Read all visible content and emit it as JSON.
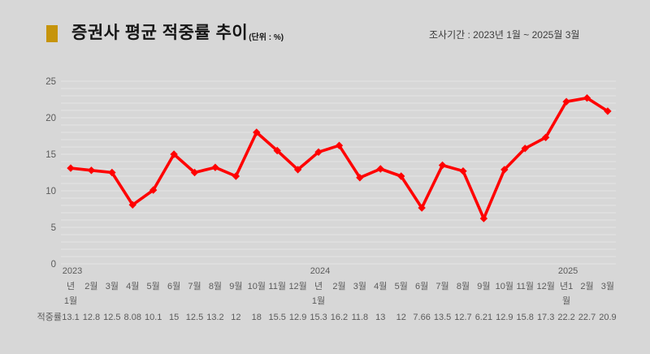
{
  "header": {
    "title": "증권사 평균 적중률 추이",
    "unit": "(단위 : %)",
    "period": "조사기간 : 2023년 1월 ~ 2025월 3월",
    "bullet_color": "#C6940B"
  },
  "chart_data": {
    "type": "line",
    "title": "증권사 평균 적중률 추이",
    "subtitle": "조사기간 : 2023년 1월 ~ 2025월 3월",
    "unit": "%",
    "xlabel": "",
    "ylabel": "",
    "ylim": [
      0,
      25
    ],
    "yticks": [
      0,
      5,
      10,
      15,
      20,
      25
    ],
    "grid": "horizontal gridlines every 1 unit, faint white on gray",
    "legend_position": "none",
    "line_color": "#FF0000",
    "marker": "diamond",
    "categories": [
      "2023년 1월",
      "2023년 2월",
      "2023년 3월",
      "2023년 4월",
      "2023년 5월",
      "2023년 6월",
      "2023년 7월",
      "2023년 8월",
      "2023년 9월",
      "2023년 10월",
      "2023년 11월",
      "2023년 12월",
      "2024년 1월",
      "2024년 2월",
      "2024년 3월",
      "2024년 4월",
      "2024년 5월",
      "2024년 6월",
      "2024년 7월",
      "2024년 8월",
      "2024년 9월",
      "2024년 10월",
      "2024년 11월",
      "2024년 12월",
      "2025년 1월",
      "2025년 2월",
      "2025년 3월"
    ],
    "x_label_lines": [
      [
        "2023",
        "년",
        "1월"
      ],
      [
        "",
        "2월",
        ""
      ],
      [
        "",
        "3월",
        ""
      ],
      [
        "",
        "4월",
        ""
      ],
      [
        "",
        "5월",
        ""
      ],
      [
        "",
        "6월",
        ""
      ],
      [
        "",
        "7월",
        ""
      ],
      [
        "",
        "8월",
        ""
      ],
      [
        "",
        "9월",
        ""
      ],
      [
        "",
        "10월",
        ""
      ],
      [
        "",
        "11월",
        ""
      ],
      [
        "",
        "12월",
        ""
      ],
      [
        "2024",
        "년",
        "1월"
      ],
      [
        "",
        "2월",
        ""
      ],
      [
        "",
        "3월",
        ""
      ],
      [
        "",
        "4월",
        ""
      ],
      [
        "",
        "5월",
        ""
      ],
      [
        "",
        "6월",
        ""
      ],
      [
        "",
        "7월",
        ""
      ],
      [
        "",
        "8월",
        ""
      ],
      [
        "",
        "9월",
        ""
      ],
      [
        "",
        "10월",
        ""
      ],
      [
        "",
        "11월",
        ""
      ],
      [
        "",
        "12월",
        ""
      ],
      [
        "2025",
        "년1",
        "월"
      ],
      [
        "",
        "2월",
        ""
      ],
      [
        "",
        "3월",
        ""
      ]
    ],
    "series": [
      {
        "name": "적중률",
        "values": [
          13.1,
          12.8,
          12.5,
          8.08,
          10.1,
          15,
          12.5,
          13.2,
          12,
          18,
          15.5,
          12.9,
          15.3,
          16.2,
          11.8,
          13,
          12,
          7.66,
          13.5,
          12.7,
          6.21,
          12.9,
          15.8,
          17.3,
          22.2,
          22.7,
          20.9
        ],
        "display_values": [
          "13.1",
          "12.8",
          "12.5",
          "8.08",
          "10.1",
          "15",
          "12.5",
          "13.2",
          "12",
          "18",
          "15.5",
          "12.9",
          "15.3",
          "16.2",
          "11.8",
          "13",
          "12",
          "7.66",
          "13.5",
          "12.7",
          "6.21",
          "12.9",
          "15.8",
          "17.3",
          "22.2",
          "22.7",
          "20.9"
        ]
      }
    ]
  }
}
